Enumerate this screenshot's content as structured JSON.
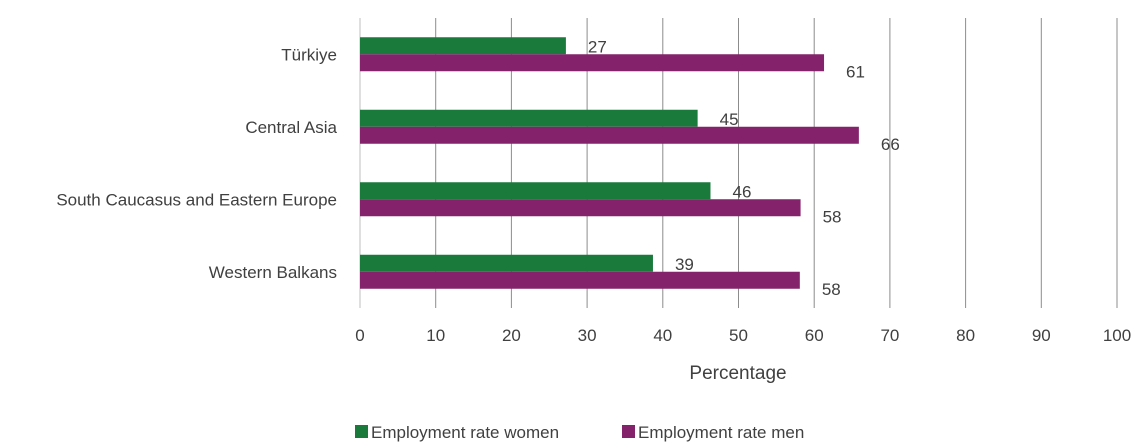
{
  "chart_data": {
    "type": "bar",
    "orientation": "horizontal",
    "categories": [
      "Türkiye",
      "Central Asia",
      "South Caucasus and Eastern Europe",
      "Western Balkans"
    ],
    "series": [
      {
        "name": "Employment rate women",
        "color": "#1a7a3c",
        "values": [
          27,
          45,
          46,
          39
        ],
        "plot_values": [
          27.2,
          44.6,
          46.3,
          38.7
        ]
      },
      {
        "name": "Employment rate men",
        "color": "#84226c",
        "values": [
          61,
          66,
          58,
          58
        ],
        "plot_values": [
          61.3,
          65.9,
          58.2,
          58.1
        ]
      }
    ],
    "xlabel": "Percentage",
    "ylabel": "",
    "xlim": [
      0,
      100
    ],
    "xticks": [
      0,
      10,
      20,
      30,
      40,
      50,
      60,
      70,
      80,
      90,
      100
    ],
    "grid": true,
    "legend_position": "bottom"
  }
}
